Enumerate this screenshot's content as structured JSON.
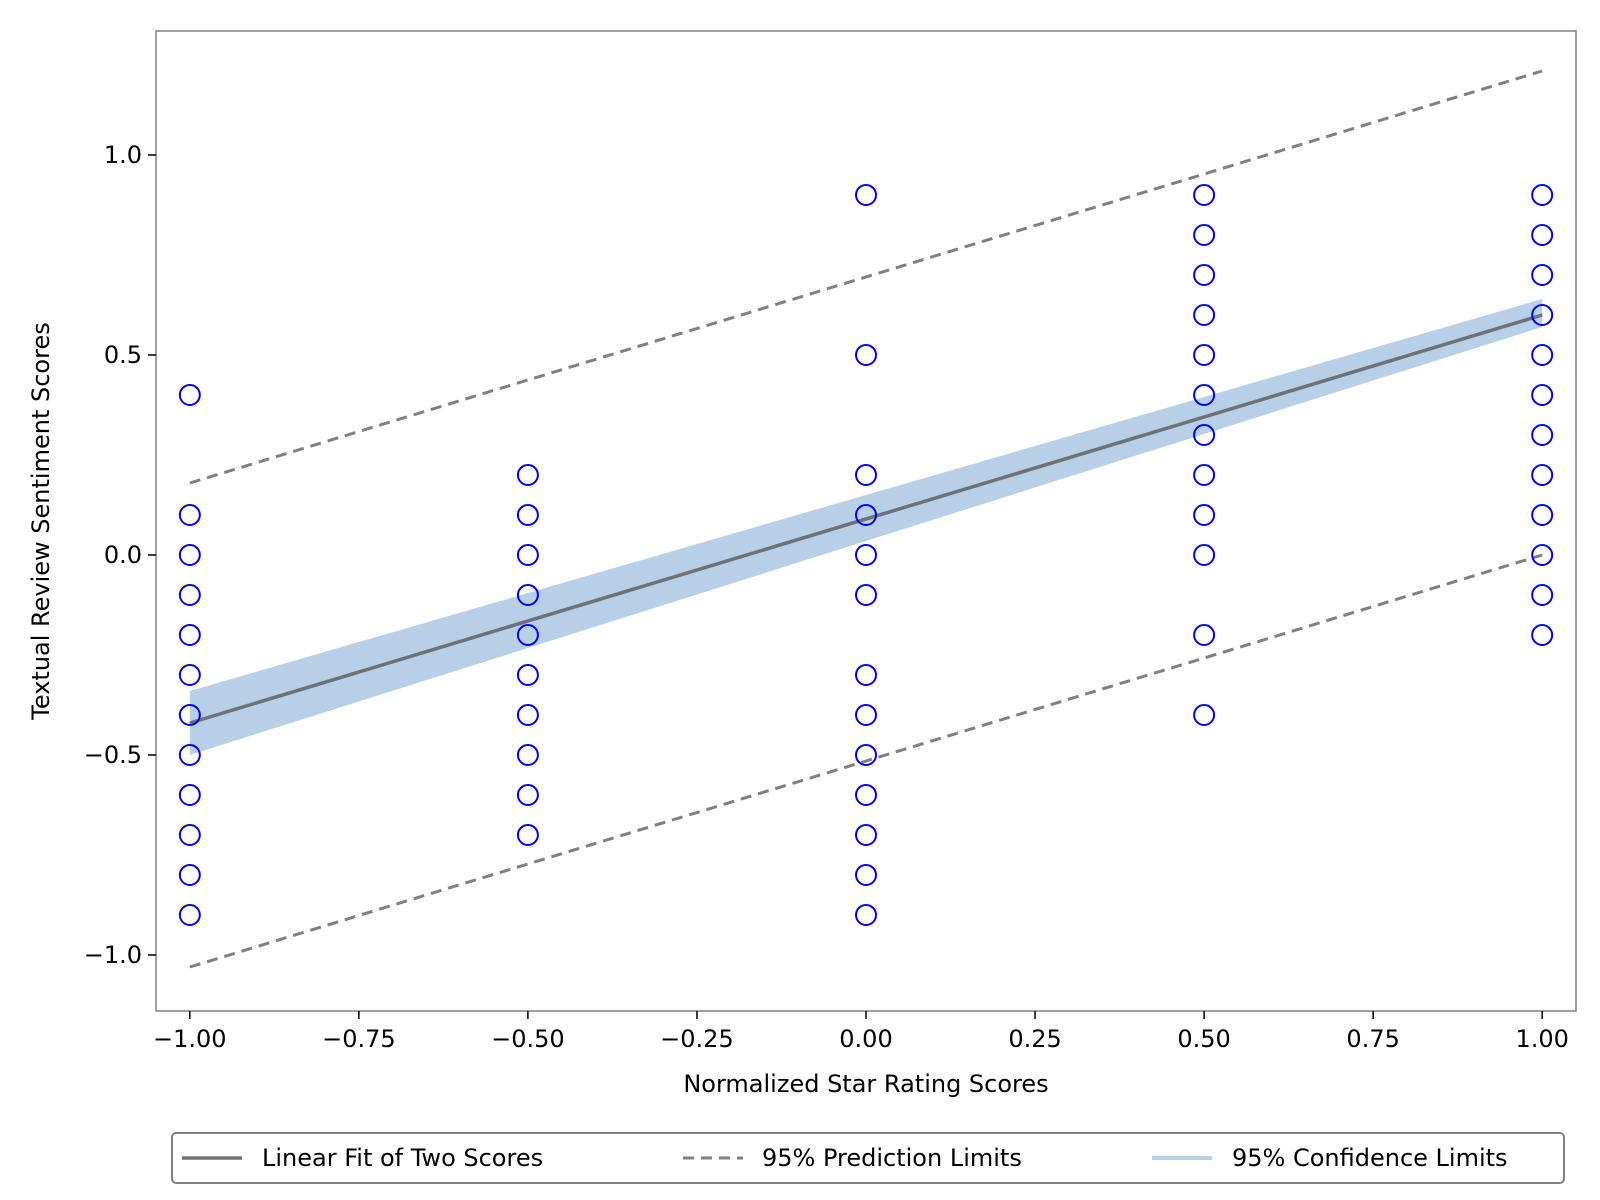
{
  "chart_data": {
    "type": "scatter",
    "title": "",
    "xlabel": "Normalized Star Rating Scores",
    "ylabel": "Textual Review Sentiment Scores",
    "xlim": [
      -1.05,
      1.05
    ],
    "ylim": [
      -1.14,
      1.31
    ],
    "xticks": [
      -1.0,
      -0.75,
      -0.5,
      -0.25,
      0.0,
      0.25,
      0.5,
      0.75,
      1.0
    ],
    "xtick_labels": [
      "−1.00",
      "−0.75",
      "−0.50",
      "−0.25",
      "0.00",
      "0.25",
      "0.50",
      "0.75",
      "1.00"
    ],
    "yticks": [
      -1.0,
      -0.5,
      0.0,
      0.5,
      1.0
    ],
    "ytick_labels": [
      "−1.0",
      "−0.5",
      "0.0",
      "0.5",
      "1.0"
    ],
    "grid": false,
    "legend_position": "bottom, below plot",
    "points": [
      {
        "x": -1.0,
        "y": [
          0.4,
          0.1,
          0.0,
          -0.1,
          -0.2,
          -0.3,
          -0.4,
          -0.5,
          -0.6,
          -0.7,
          -0.8,
          -0.9
        ]
      },
      {
        "x": -0.5,
        "y": [
          0.2,
          0.1,
          0.0,
          -0.1,
          -0.2,
          -0.3,
          -0.4,
          -0.5,
          -0.6,
          -0.7
        ]
      },
      {
        "x": 0.0,
        "y": [
          0.9,
          0.5,
          0.2,
          0.1,
          0.0,
          -0.1,
          -0.3,
          -0.4,
          -0.5,
          -0.6,
          -0.7,
          -0.8,
          -0.9
        ]
      },
      {
        "x": 0.5,
        "y": [
          0.9,
          0.8,
          0.7,
          0.6,
          0.5,
          0.4,
          0.3,
          0.2,
          0.1,
          0.0,
          -0.2,
          -0.4
        ]
      },
      {
        "x": 1.0,
        "y": [
          0.9,
          0.8,
          0.7,
          0.6,
          0.5,
          0.4,
          0.3,
          0.2,
          0.1,
          0.0,
          -0.1,
          -0.2
        ]
      }
    ],
    "series": [
      {
        "name": "Linear Fit of Two Scores",
        "style": "solid",
        "color": "#7f7f7f",
        "x": [
          -1.0,
          1.0
        ],
        "y": [
          -0.42,
          0.6
        ]
      },
      {
        "name": "95% Prediction Limits",
        "style": "dashed",
        "color": "#7f7f7f",
        "lower": {
          "x": [
            -1.0,
            1.0
          ],
          "y": [
            -1.03,
            0.0
          ]
        },
        "upper": {
          "x": [
            -1.0,
            1.0
          ],
          "y": [
            0.18,
            1.21
          ]
        }
      },
      {
        "name": "95% Confidence Limits",
        "style": "band",
        "color": "#b8cfe8",
        "lower": {
          "x": [
            -1.0,
            1.0
          ],
          "y": [
            -0.5,
            0.57
          ]
        },
        "upper": {
          "x": [
            -1.0,
            1.0
          ],
          "y": [
            -0.34,
            0.64
          ]
        }
      }
    ],
    "colors": {
      "marker": "#0000ff",
      "fit": "#6e7278",
      "dashed": "#808080",
      "band": "#b8cfe8",
      "axis": "#808080"
    }
  }
}
